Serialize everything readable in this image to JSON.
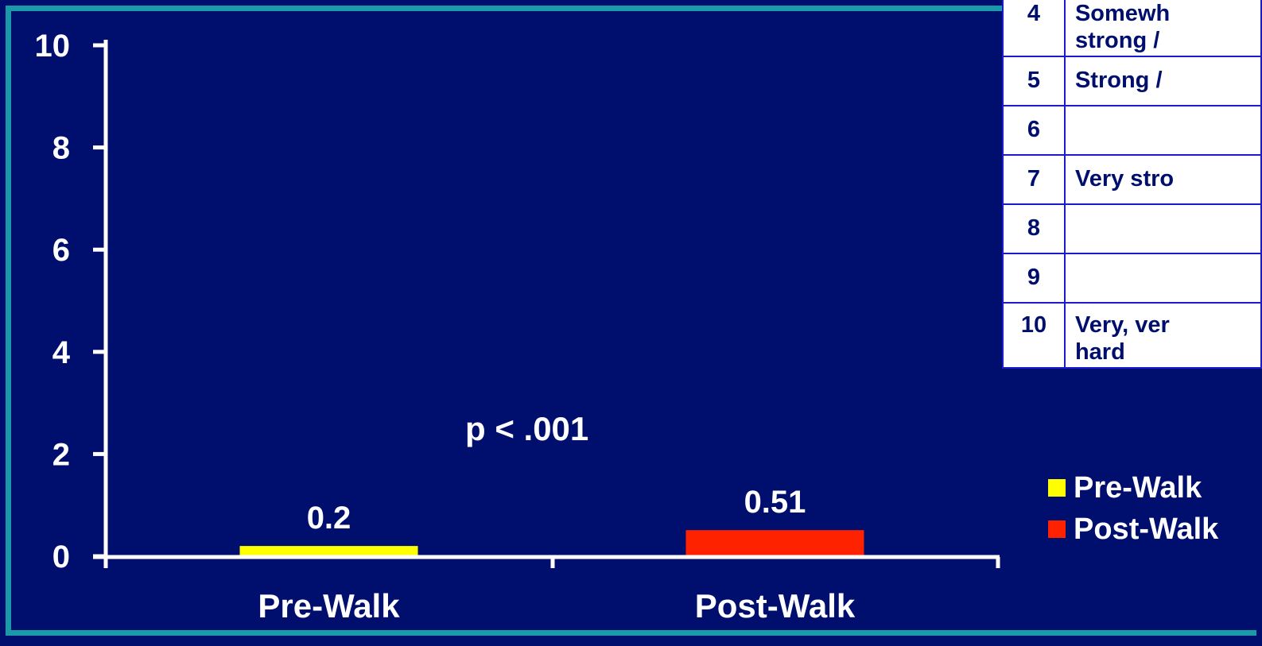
{
  "chart_data": {
    "type": "bar",
    "categories": [
      "Pre-Walk",
      "Post-Walk"
    ],
    "series": [
      {
        "name": "Pre-Walk",
        "color": "#ffff00"
      },
      {
        "name": "Post-Walk",
        "color": "#ff2200"
      }
    ],
    "values": [
      0.2,
      0.51
    ],
    "value_labels": [
      "0.2",
      "0.51"
    ],
    "yticks": [
      "0",
      "2",
      "4",
      "6",
      "8",
      "10"
    ],
    "ylim": [
      0,
      10
    ],
    "legend": "right",
    "grid": false
  },
  "annotation": {
    "p_value": "p < .001"
  },
  "legend_items": [
    {
      "label": "Pre-Walk",
      "color": "#ffff00"
    },
    {
      "label": "Post-Walk",
      "color": "#ff2200"
    }
  ],
  "borg_table": {
    "rows": [
      {
        "num": "4",
        "lines": [
          "Somewh",
          "strong / "
        ]
      },
      {
        "num": "5",
        "lines": [
          "Strong / "
        ]
      },
      {
        "num": "6",
        "lines": [
          ""
        ]
      },
      {
        "num": "7",
        "lines": [
          "Very stro"
        ]
      },
      {
        "num": "8",
        "lines": [
          ""
        ]
      },
      {
        "num": "9",
        "lines": [
          ""
        ]
      },
      {
        "num": "10",
        "lines": [
          "Very, ver",
          "hard"
        ]
      }
    ]
  },
  "colors": {
    "background": "#000f6e",
    "frame": "#1a9aa8",
    "axis": "#ffffff"
  }
}
